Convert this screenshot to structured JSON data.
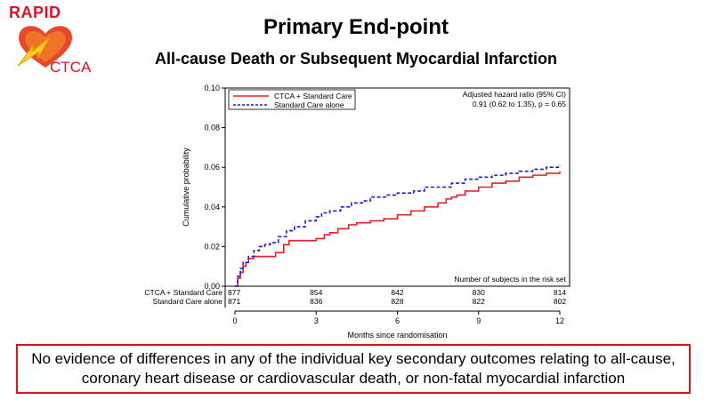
{
  "logo": {
    "top_text": "RAPID",
    "bottom_text": "CTCA"
  },
  "title": "Primary End-point",
  "subtitle": "All-cause Death or Subsequent Myocardial Infarction",
  "chart_data": {
    "type": "line",
    "step": true,
    "xlabel": "Months since randomisation",
    "ylabel": "Cumulative probability",
    "xlim": [
      0,
      12
    ],
    "ylim": [
      0,
      0.1
    ],
    "x_ticks": [
      "0",
      "3",
      "6",
      "9",
      "12"
    ],
    "y_ticks": [
      "0.00",
      "0.02",
      "0.04",
      "0.06",
      "0.08",
      "0.10"
    ],
    "grid": false,
    "legend_position": "top-left",
    "annotation": [
      "Adjusted hazard ratio (95% CI)",
      "0.91 (0.62 to 1.35),  p = 0.65"
    ],
    "series": [
      {
        "name": "CTCA + Standard Care",
        "color": "#e8202a",
        "style": "solid",
        "x": [
          0,
          0.1,
          0.2,
          0.3,
          0.4,
          0.5,
          0.7,
          1.0,
          1.3,
          1.5,
          1.8,
          2.0,
          3.0,
          3.3,
          3.5,
          3.8,
          4.2,
          4.5,
          5.0,
          5.5,
          6.0,
          6.5,
          7.0,
          7.3,
          7.5,
          7.8,
          8.0,
          8.2,
          8.5,
          9.0,
          9.5,
          10.0,
          10.5,
          11.0,
          11.5,
          12.0
        ],
        "y": [
          0,
          0.004,
          0.007,
          0.01,
          0.012,
          0.014,
          0.015,
          0.015,
          0.015,
          0.017,
          0.021,
          0.023,
          0.024,
          0.026,
          0.027,
          0.029,
          0.031,
          0.032,
          0.033,
          0.034,
          0.036,
          0.038,
          0.04,
          0.04,
          0.042,
          0.044,
          0.045,
          0.046,
          0.048,
          0.05,
          0.052,
          0.053,
          0.055,
          0.056,
          0.057,
          0.058
        ]
      },
      {
        "name": "Standard Care alone",
        "color": "#1a1ad6",
        "style": "dashed",
        "x": [
          0,
          0.1,
          0.2,
          0.3,
          0.5,
          0.7,
          0.9,
          1.1,
          1.3,
          1.6,
          1.9,
          2.2,
          2.6,
          3.0,
          3.2,
          3.5,
          3.9,
          4.3,
          4.7,
          5.0,
          5.6,
          6.0,
          6.6,
          7.0,
          7.6,
          8.0,
          8.5,
          9.0,
          9.5,
          10.0,
          10.5,
          11.0,
          11.5,
          12.0
        ],
        "y": [
          0,
          0.005,
          0.009,
          0.012,
          0.015,
          0.018,
          0.02,
          0.021,
          0.022,
          0.025,
          0.028,
          0.03,
          0.033,
          0.035,
          0.037,
          0.038,
          0.04,
          0.042,
          0.043,
          0.045,
          0.046,
          0.047,
          0.048,
          0.05,
          0.05,
          0.052,
          0.054,
          0.055,
          0.056,
          0.057,
          0.058,
          0.059,
          0.06,
          0.061
        ]
      }
    ],
    "risk_table": {
      "header": "Number of subjects in the risk set",
      "rows": [
        {
          "label": "CTCA + Standard Care",
          "values": [
            "877",
            "854",
            "842",
            "830",
            "814"
          ]
        },
        {
          "label": "Standard Care alone",
          "values": [
            "871",
            "836",
            "828",
            "822",
            "802"
          ]
        }
      ]
    }
  },
  "callout": "No evidence of differences in any of the individual key secondary outcomes relating to all-cause, coronary heart disease or cardiovascular death, or non-fatal myocardial infarction"
}
